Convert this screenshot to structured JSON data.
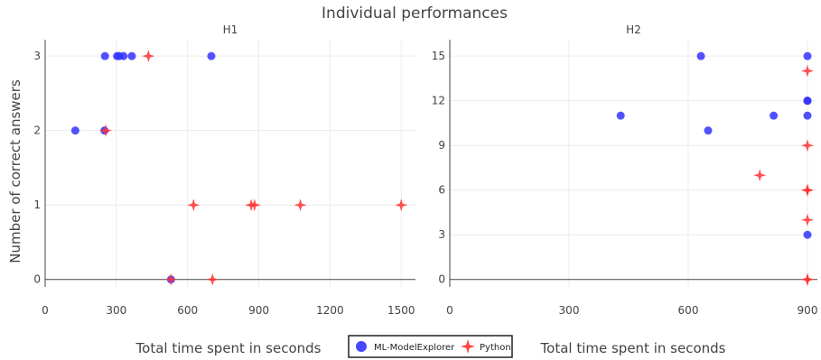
{
  "chart_data": {
    "type": "scatter",
    "title": "Individual performances",
    "ylabel": "Number of correct answers",
    "legend": {
      "placement": "bottom-center",
      "entries": [
        {
          "name": "ML-ModelExplorer",
          "color": "#3333ff",
          "marker": "circle"
        },
        {
          "name": "Python",
          "color": "#ff3333",
          "marker": "star4"
        }
      ]
    },
    "grid": true,
    "panels": [
      {
        "title": "H1",
        "xlabel": "Total time spent in seconds",
        "xlim": [
          0,
          1560
        ],
        "ylim": [
          -0.1,
          3.22
        ],
        "xticks": [
          0,
          300,
          600,
          900,
          1200,
          1500
        ],
        "yticks": [
          0,
          1,
          2,
          3
        ],
        "series": [
          {
            "name": "ML-ModelExplorer",
            "points": [
              [
                127,
                2
              ],
              [
                250,
                2
              ],
              [
                252,
                3
              ],
              [
                303,
                3
              ],
              [
                312,
                3
              ],
              [
                330,
                3
              ],
              [
                365,
                3
              ],
              [
                700,
                3
              ],
              [
                530,
                0
              ]
            ]
          },
          {
            "name": "Python",
            "points": [
              [
                255,
                2
              ],
              [
                435,
                3
              ],
              [
                530,
                0
              ],
              [
                625,
                1
              ],
              [
                705,
                0
              ],
              [
                868,
                1
              ],
              [
                882,
                1
              ],
              [
                1075,
                1
              ],
              [
                1500,
                1
              ]
            ]
          }
        ]
      },
      {
        "title": "H2",
        "xlabel": "Total time spent in seconds",
        "xlim": [
          0,
          925
        ],
        "ylim": [
          -0.5,
          16.1
        ],
        "xticks": [
          0,
          300,
          600,
          900
        ],
        "yticks": [
          0,
          3,
          6,
          9,
          12,
          15
        ],
        "series": [
          {
            "name": "ML-ModelExplorer",
            "points": [
              [
                430,
                11
              ],
              [
                632,
                15
              ],
              [
                650,
                10
              ],
              [
                815,
                11
              ],
              [
                900,
                15
              ],
              [
                900,
                12
              ],
              [
                900,
                12
              ],
              [
                900,
                11
              ],
              [
                900,
                3
              ]
            ]
          },
          {
            "name": "Python",
            "points": [
              [
                780,
                7
              ],
              [
                900,
                14
              ],
              [
                900,
                9
              ],
              [
                900,
                6
              ],
              [
                900,
                6
              ],
              [
                900,
                4
              ],
              [
                900,
                0
              ],
              [
                900,
                0
              ]
            ]
          }
        ]
      }
    ]
  }
}
